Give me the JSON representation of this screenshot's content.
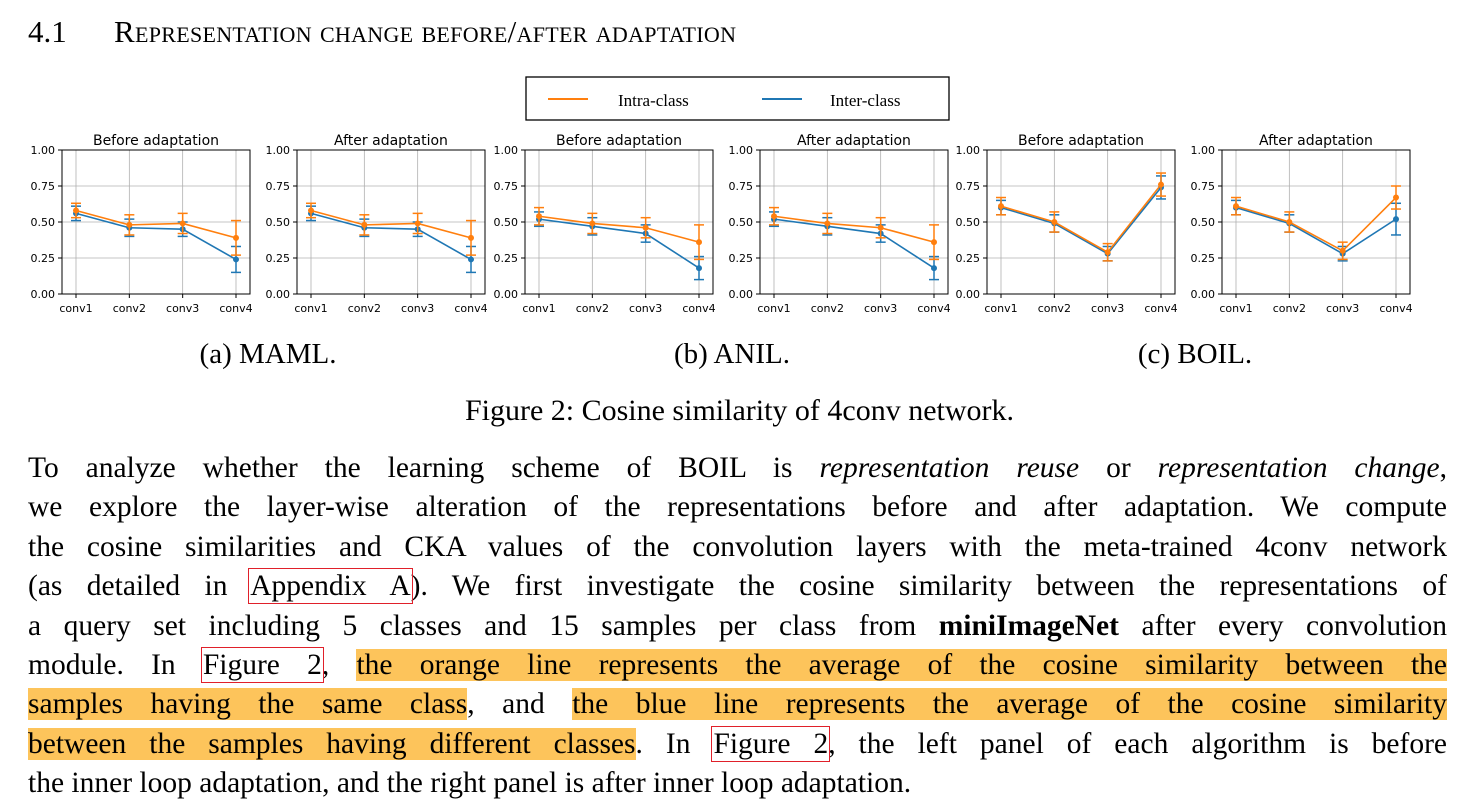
{
  "section": {
    "number": "4.1",
    "title": "Representation change before/after adaptation"
  },
  "legend": {
    "intra": "Intra-class",
    "inter": "Inter-class"
  },
  "colors": {
    "intra": "#ff7f0e",
    "inter": "#1f77b4",
    "highlight": "#fdc45b",
    "ref_box": "#e0202a"
  },
  "chart_data": [
    {
      "type": "line",
      "group": "(a) MAML.",
      "title": "Before adaptation",
      "categories": [
        "conv1",
        "conv2",
        "conv3",
        "conv4"
      ],
      "ylim": [
        0,
        1
      ],
      "yticks": [
        "0.00",
        "0.25",
        "0.50",
        "0.75",
        "1.00"
      ],
      "grid": true,
      "series": [
        {
          "name": "Intra-class",
          "values": [
            0.58,
            0.48,
            0.49,
            0.39
          ],
          "err": [
            0.05,
            0.07,
            0.07,
            0.12
          ]
        },
        {
          "name": "Inter-class",
          "values": [
            0.56,
            0.46,
            0.45,
            0.24
          ],
          "err": [
            0.05,
            0.06,
            0.05,
            0.09
          ]
        }
      ]
    },
    {
      "type": "line",
      "group": "(a) MAML.",
      "title": "After adaptation",
      "categories": [
        "conv1",
        "conv2",
        "conv3",
        "conv4"
      ],
      "ylim": [
        0,
        1
      ],
      "yticks": [
        "0.00",
        "0.25",
        "0.50",
        "0.75",
        "1.00"
      ],
      "grid": true,
      "series": [
        {
          "name": "Intra-class",
          "values": [
            0.58,
            0.48,
            0.49,
            0.39
          ],
          "err": [
            0.05,
            0.07,
            0.07,
            0.12
          ]
        },
        {
          "name": "Inter-class",
          "values": [
            0.56,
            0.46,
            0.45,
            0.24
          ],
          "err": [
            0.05,
            0.06,
            0.05,
            0.09
          ]
        }
      ]
    },
    {
      "type": "line",
      "group": "(b) ANIL.",
      "title": "Before adaptation",
      "categories": [
        "conv1",
        "conv2",
        "conv3",
        "conv4"
      ],
      "ylim": [
        0,
        1
      ],
      "yticks": [
        "0.00",
        "0.25",
        "0.50",
        "0.75",
        "1.00"
      ],
      "grid": true,
      "series": [
        {
          "name": "Intra-class",
          "values": [
            0.54,
            0.49,
            0.46,
            0.36
          ],
          "err": [
            0.06,
            0.07,
            0.07,
            0.12
          ]
        },
        {
          "name": "Inter-class",
          "values": [
            0.52,
            0.47,
            0.42,
            0.18
          ],
          "err": [
            0.05,
            0.06,
            0.06,
            0.08
          ]
        }
      ]
    },
    {
      "type": "line",
      "group": "(b) ANIL.",
      "title": "After adaptation",
      "categories": [
        "conv1",
        "conv2",
        "conv3",
        "conv4"
      ],
      "ylim": [
        0,
        1
      ],
      "yticks": [
        "0.00",
        "0.25",
        "0.50",
        "0.75",
        "1.00"
      ],
      "grid": true,
      "series": [
        {
          "name": "Intra-class",
          "values": [
            0.54,
            0.49,
            0.46,
            0.36
          ],
          "err": [
            0.06,
            0.07,
            0.07,
            0.12
          ]
        },
        {
          "name": "Inter-class",
          "values": [
            0.52,
            0.47,
            0.42,
            0.18
          ],
          "err": [
            0.05,
            0.06,
            0.06,
            0.08
          ]
        }
      ]
    },
    {
      "type": "line",
      "group": "(c) BOIL.",
      "title": "Before adaptation",
      "categories": [
        "conv1",
        "conv2",
        "conv3",
        "conv4"
      ],
      "ylim": [
        0,
        1
      ],
      "yticks": [
        "0.00",
        "0.25",
        "0.50",
        "0.75",
        "1.00"
      ],
      "grid": true,
      "series": [
        {
          "name": "Intra-class",
          "values": [
            0.61,
            0.5,
            0.29,
            0.76
          ],
          "err": [
            0.06,
            0.07,
            0.06,
            0.08
          ]
        },
        {
          "name": "Inter-class",
          "values": [
            0.6,
            0.49,
            0.28,
            0.74
          ],
          "err": [
            0.05,
            0.06,
            0.05,
            0.08
          ]
        }
      ]
    },
    {
      "type": "line",
      "group": "(c) BOIL.",
      "title": "After adaptation",
      "categories": [
        "conv1",
        "conv2",
        "conv3",
        "conv4"
      ],
      "ylim": [
        0,
        1
      ],
      "yticks": [
        "0.00",
        "0.25",
        "0.50",
        "0.75",
        "1.00"
      ],
      "grid": true,
      "series": [
        {
          "name": "Intra-class",
          "values": [
            0.61,
            0.5,
            0.3,
            0.67
          ],
          "err": [
            0.06,
            0.07,
            0.06,
            0.08
          ]
        },
        {
          "name": "Inter-class",
          "values": [
            0.6,
            0.49,
            0.28,
            0.52
          ],
          "err": [
            0.05,
            0.06,
            0.05,
            0.11
          ]
        }
      ]
    }
  ],
  "subcaptions": [
    "(a) MAML.",
    "(b) ANIL.",
    "(c) BOIL."
  ],
  "figure_caption": "Figure 2: Cosine similarity of 4conv network.",
  "paragraph": {
    "l1a": "To analyze whether the learning scheme of BOIL is ",
    "l1b": "representation reuse",
    "l1c": " or ",
    "l1d": "representation change",
    "l1e": ",",
    "l2": "we explore the layer-wise alteration of the representations before and after adaptation. We compute",
    "l3": "the cosine similarities and CKA values of the convolution layers with the meta-trained 4conv network",
    "l4a": "(as detailed in ",
    "l4ref": "Appendix A",
    "l4b": "). We first investigate the cosine similarity between the representations of",
    "l5a": "a query set including 5 classes and 15 samples per class from ",
    "l5b": "miniImageNet",
    "l5c": " after every convolution",
    "l6a": "module. In ",
    "l6ref": "Figure 2",
    "l6b": ", ",
    "l6hl": "the orange line represents the average of the cosine similarity between the",
    "l7hl1": "samples having the same class",
    "l7b": ", and ",
    "l7hl2": "the blue line represents the average of the cosine similarity",
    "l8hl": "between the samples having different classes",
    "l8b": ". In ",
    "l8ref": "Figure 2",
    "l8c": ", the left panel of each algorithm is before",
    "l9": "the inner loop adaptation, and the right panel is after inner loop adaptation."
  }
}
